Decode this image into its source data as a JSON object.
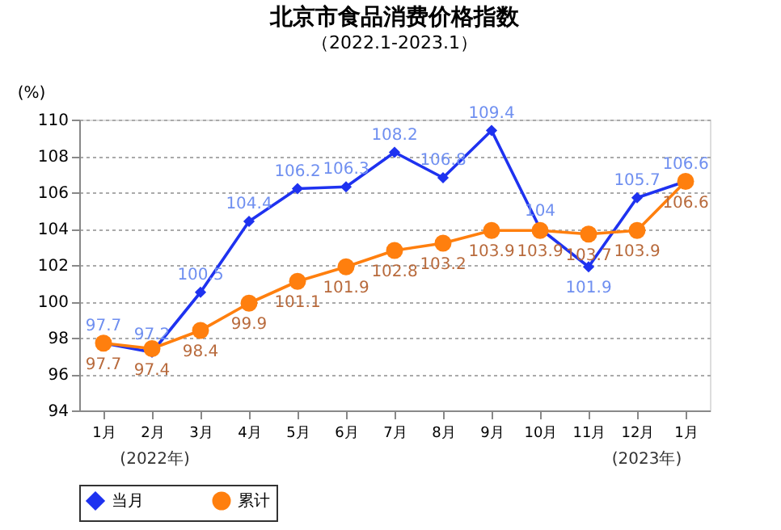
{
  "chart_data": {
    "type": "line",
    "title": "北京市食品消费价格指数",
    "subtitle": "（2022.1-2023.1）",
    "ylabel": "(%)",
    "categories": [
      "1月",
      "2月",
      "3月",
      "4月",
      "5月",
      "6月",
      "7月",
      "8月",
      "9月",
      "10月",
      "11月",
      "12月",
      "1月"
    ],
    "series": [
      {
        "name": "当月",
        "color": "#1e32f0",
        "marker": "diamond",
        "values": [
          97.7,
          97.2,
          100.5,
          104.4,
          106.2,
          106.3,
          108.2,
          106.8,
          109.4,
          104,
          101.9,
          105.7,
          106.6
        ]
      },
      {
        "name": "累计",
        "color": "#ff7f0e",
        "marker": "circle",
        "values": [
          97.7,
          97.4,
          98.4,
          99.9,
          101.1,
          101.9,
          102.8,
          103.2,
          103.9,
          103.9,
          103.7,
          103.9,
          106.6
        ]
      }
    ],
    "ylim": [
      94,
      110
    ],
    "yticks": [
      94,
      96,
      98,
      100,
      102,
      104,
      106,
      108,
      110
    ],
    "grid": "y",
    "legend": "bottom",
    "data_labels": true,
    "line_style": "solid",
    "annotations": [
      "(2022年)",
      "(2023年)"
    ]
  }
}
